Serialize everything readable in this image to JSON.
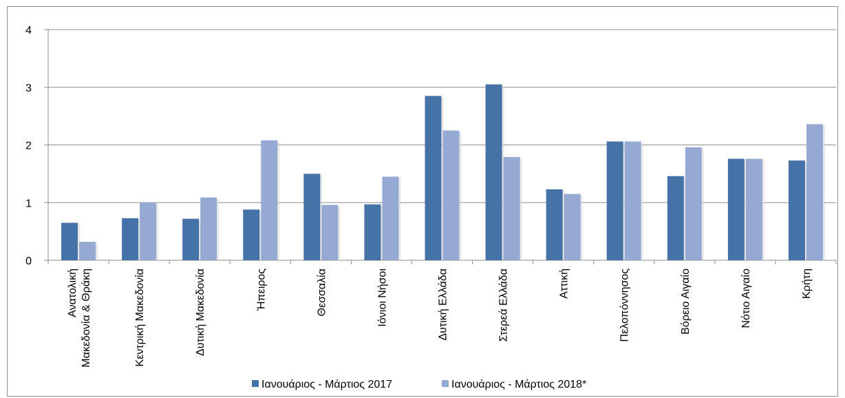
{
  "chart_data": {
    "type": "bar",
    "categories": [
      [
        "Ανατολική",
        "Μακεδονία & Θράκη"
      ],
      [
        "Κεντρική Μακεδονία"
      ],
      [
        "Δυτική Μακεδονία"
      ],
      [
        "Ήπειρος"
      ],
      [
        "Θεσσαλία"
      ],
      [
        "Ιόνιοι Νήσοι"
      ],
      [
        "Δυτική Ελλάδα"
      ],
      [
        "Στερεά Ελλάδα"
      ],
      [
        "Αττική"
      ],
      [
        "Πελοπόννησος"
      ],
      [
        "Βόρειο Αιγαίο"
      ],
      [
        "Νότιο Αιγαίο"
      ],
      [
        "Κρήτη"
      ]
    ],
    "series": [
      {
        "name": "Ιανουάριος - Μάρτιος 2017",
        "color": "#4572A7",
        "values": [
          0.65,
          0.73,
          0.72,
          0.88,
          1.5,
          0.97,
          2.85,
          3.05,
          1.23,
          2.06,
          1.46,
          1.76,
          1.73
        ]
      },
      {
        "name": "Ιανουάριος - Μάρτιος 2018*",
        "color": "#95A9D3",
        "values": [
          0.32,
          1.0,
          1.09,
          2.08,
          0.96,
          1.45,
          2.25,
          1.79,
          1.15,
          2.06,
          1.96,
          1.76,
          2.36
        ]
      }
    ],
    "yticks": [
      "0",
      "1",
      "2",
      "3",
      "4"
    ],
    "ylim": [
      0,
      4
    ],
    "grid": true,
    "legend_position": "bottom"
  }
}
